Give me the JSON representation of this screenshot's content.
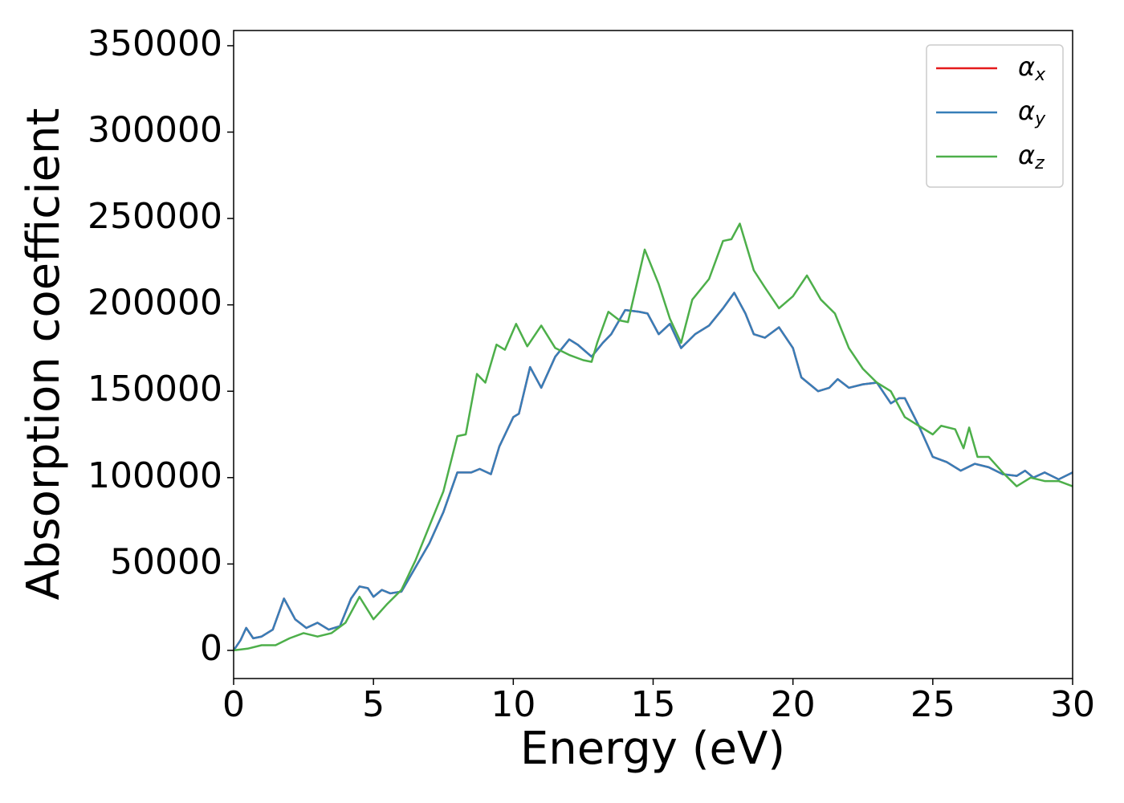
{
  "chart_data": {
    "type": "line",
    "xlabel": "Energy (eV)",
    "ylabel": "Absorption coefficient",
    "xlim": [
      0,
      30
    ],
    "xticks": [
      0,
      5,
      10,
      15,
      20,
      25,
      30
    ],
    "ylim": [
      -16300,
      358800
    ],
    "yticks": [
      0,
      50000,
      100000,
      150000,
      200000,
      250000,
      300000,
      350000
    ],
    "grid": false,
    "legend": "upper right",
    "series": [
      {
        "name": "αx",
        "color": "#e41a1c",
        "x": [
          0,
          0.25,
          0.45,
          0.7,
          1.0,
          1.4,
          1.8,
          2.2,
          2.6,
          3.0,
          3.4,
          3.8,
          4.2,
          4.5,
          4.8,
          5.0,
          5.3,
          5.6,
          6.0,
          6.5,
          7.0,
          7.5,
          8.0,
          8.5,
          8.8,
          9.2,
          9.5,
          10.0,
          10.2,
          10.6,
          11.0,
          11.5,
          12.0,
          12.3,
          12.8,
          13.2,
          13.5,
          14.0,
          14.5,
          14.8,
          15.2,
          15.6,
          16.0,
          16.5,
          17.0,
          17.5,
          17.9,
          18.3,
          18.6,
          19.0,
          19.5,
          20.0,
          20.3,
          20.9,
          21.3,
          21.6,
          22.0,
          22.5,
          23.0,
          23.5,
          23.8,
          24.0,
          24.5,
          25.0,
          25.5,
          26.0,
          26.5,
          27.0,
          27.5,
          28.0,
          28.3,
          28.6,
          29.0,
          29.5,
          30.0
        ],
        "values": [
          0,
          6000,
          13000,
          7000,
          8000,
          12000,
          30000,
          18000,
          13000,
          16000,
          12000,
          14000,
          30000,
          37000,
          36000,
          31000,
          35000,
          33000,
          34000,
          48000,
          62000,
          80000,
          103000,
          103000,
          105000,
          102000,
          118000,
          135000,
          137000,
          164000,
          152000,
          170000,
          180000,
          177000,
          170000,
          178000,
          183000,
          197000,
          196000,
          195000,
          183000,
          189000,
          175000,
          183000,
          188000,
          198000,
          207000,
          195000,
          183000,
          181000,
          187000,
          175000,
          158000,
          150000,
          152000,
          157000,
          152000,
          154000,
          155000,
          143000,
          146000,
          146000,
          130000,
          112000,
          109000,
          104000,
          108000,
          106000,
          102000,
          101000,
          104000,
          100000,
          103000,
          99000,
          103000
        ]
      },
      {
        "name": "αy",
        "color": "#377eb8",
        "x": [
          0,
          0.25,
          0.45,
          0.7,
          1.0,
          1.4,
          1.8,
          2.2,
          2.6,
          3.0,
          3.4,
          3.8,
          4.2,
          4.5,
          4.8,
          5.0,
          5.3,
          5.6,
          6.0,
          6.5,
          7.0,
          7.5,
          8.0,
          8.5,
          8.8,
          9.2,
          9.5,
          10.0,
          10.2,
          10.6,
          11.0,
          11.5,
          12.0,
          12.3,
          12.8,
          13.2,
          13.5,
          14.0,
          14.5,
          14.8,
          15.2,
          15.6,
          16.0,
          16.5,
          17.0,
          17.5,
          17.9,
          18.3,
          18.6,
          19.0,
          19.5,
          20.0,
          20.3,
          20.9,
          21.3,
          21.6,
          22.0,
          22.5,
          23.0,
          23.5,
          23.8,
          24.0,
          24.5,
          25.0,
          25.5,
          26.0,
          26.5,
          27.0,
          27.5,
          28.0,
          28.3,
          28.6,
          29.0,
          29.5,
          30.0
        ],
        "values": [
          0,
          6000,
          13000,
          7000,
          8000,
          12000,
          30000,
          18000,
          13000,
          16000,
          12000,
          14000,
          30000,
          37000,
          36000,
          31000,
          35000,
          33000,
          34000,
          48000,
          62000,
          80000,
          103000,
          103000,
          105000,
          102000,
          118000,
          135000,
          137000,
          164000,
          152000,
          170000,
          180000,
          177000,
          170000,
          178000,
          183000,
          197000,
          196000,
          195000,
          183000,
          189000,
          175000,
          183000,
          188000,
          198000,
          207000,
          195000,
          183000,
          181000,
          187000,
          175000,
          158000,
          150000,
          152000,
          157000,
          152000,
          154000,
          155000,
          143000,
          146000,
          146000,
          130000,
          112000,
          109000,
          104000,
          108000,
          106000,
          102000,
          101000,
          104000,
          100000,
          103000,
          99000,
          103000
        ]
      },
      {
        "name": "αz",
        "color": "#4daf4a",
        "x": [
          0,
          0.5,
          1.0,
          1.5,
          2.0,
          2.5,
          3.0,
          3.5,
          4.0,
          4.5,
          5.0,
          5.5,
          6.0,
          6.5,
          7.0,
          7.5,
          8.0,
          8.3,
          8.7,
          9.0,
          9.4,
          9.7,
          10.1,
          10.5,
          11.0,
          11.5,
          12.0,
          12.5,
          12.8,
          13.0,
          13.4,
          13.8,
          14.1,
          14.7,
          15.2,
          15.6,
          16.0,
          16.4,
          17.0,
          17.5,
          17.8,
          18.1,
          18.6,
          19.0,
          19.5,
          20.0,
          20.5,
          21.0,
          21.5,
          22.0,
          22.5,
          23.0,
          23.5,
          24.0,
          24.5,
          25.0,
          25.3,
          25.8,
          26.1,
          26.3,
          26.6,
          27.0,
          27.5,
          28.0,
          28.5,
          29.0,
          29.5,
          30.0
        ],
        "values": [
          0,
          1000,
          3000,
          3000,
          7000,
          10000,
          8000,
          10000,
          16000,
          31000,
          18000,
          27000,
          35000,
          52000,
          72000,
          92000,
          124000,
          125000,
          160000,
          155000,
          177000,
          174000,
          189000,
          176000,
          188000,
          175000,
          171000,
          168000,
          167000,
          178000,
          196000,
          191000,
          190000,
          232000,
          212000,
          192000,
          178000,
          203000,
          215000,
          237000,
          238000,
          247000,
          220000,
          210000,
          198000,
          205000,
          217000,
          203000,
          195000,
          175000,
          163000,
          155000,
          150000,
          135000,
          130000,
          125000,
          130000,
          128000,
          117000,
          129000,
          112000,
          112000,
          103000,
          95000,
          100000,
          98000,
          98000,
          95000
        ]
      }
    ]
  }
}
